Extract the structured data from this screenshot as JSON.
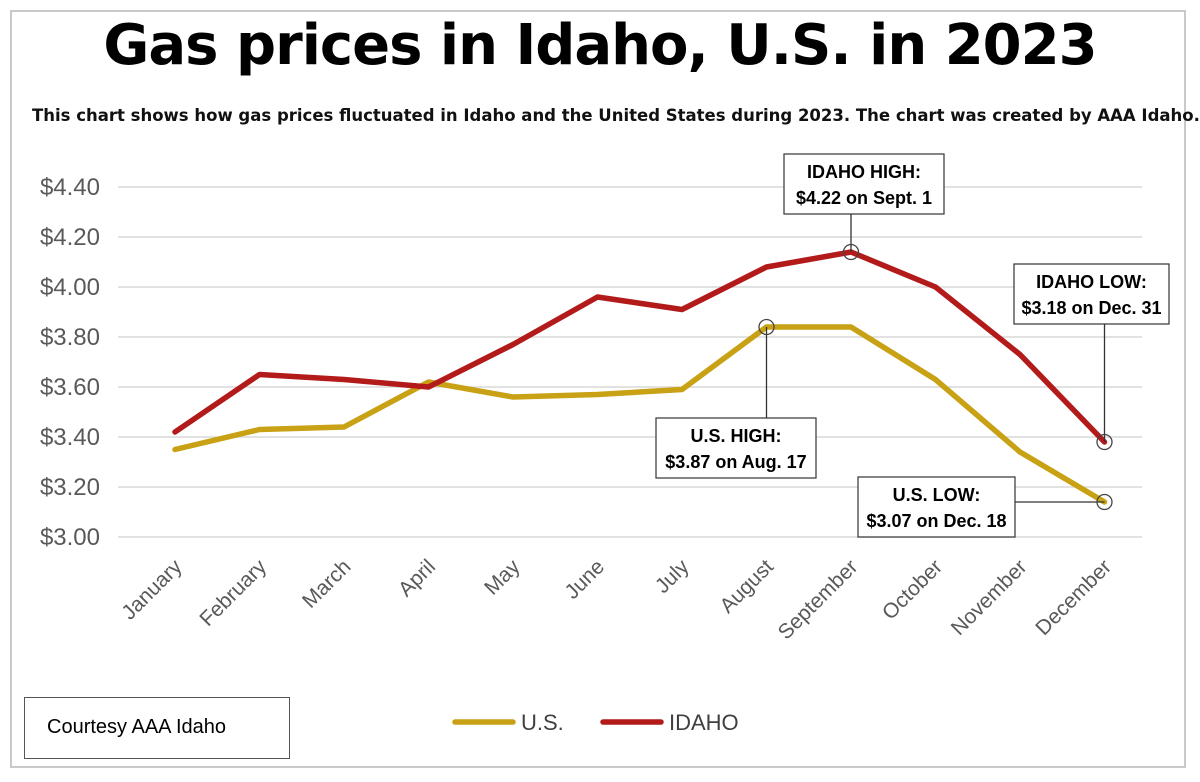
{
  "title": "Gas prices in Idaho, U.S. in 2023",
  "subtitle": "This chart shows how gas prices fluctuated in Idaho and the United States during 2023. The chart was created by AAA Idaho.",
  "courtesy": "Courtesy AAA Idaho",
  "chart_data": {
    "type": "line",
    "title": "Gas prices in Idaho, U.S. in 2023",
    "categories": [
      "January",
      "February",
      "March",
      "April",
      "May",
      "June",
      "July",
      "August",
      "September",
      "October",
      "November",
      "December"
    ],
    "ylim": [
      3.0,
      4.4
    ],
    "yticks": [
      3.0,
      3.2,
      3.4,
      3.6,
      3.8,
      4.0,
      4.2,
      4.4
    ],
    "ytick_labels": [
      "$3.00",
      "$3.20",
      "$3.40",
      "$3.60",
      "$3.80",
      "$4.00",
      "$4.20",
      "$4.40"
    ],
    "grid": true,
    "legend_position": "bottom",
    "series": [
      {
        "name": "U.S.",
        "color": "#c9a114",
        "values": [
          3.35,
          3.43,
          3.44,
          3.62,
          3.56,
          3.57,
          3.59,
          3.84,
          3.84,
          3.63,
          3.34,
          3.14
        ]
      },
      {
        "name": "IDAHO",
        "color": "#b31b1b",
        "values": [
          3.42,
          3.65,
          3.63,
          3.6,
          3.77,
          3.96,
          3.91,
          4.08,
          4.14,
          4.0,
          3.73,
          3.38
        ]
      }
    ],
    "annotations": [
      {
        "line1": "IDAHO HIGH:",
        "line2": "$4.22 on Sept. 1",
        "series": 1,
        "index": 8
      },
      {
        "line1": "IDAHO LOW:",
        "line2": "$3.18 on Dec. 31",
        "series": 1,
        "index": 11
      },
      {
        "line1": "U.S. HIGH:",
        "line2": "$3.87 on Aug. 17",
        "series": 0,
        "index": 7
      },
      {
        "line1": "U.S. LOW:",
        "line2": "$3.07 on Dec. 18",
        "series": 0,
        "index": 11
      }
    ]
  }
}
